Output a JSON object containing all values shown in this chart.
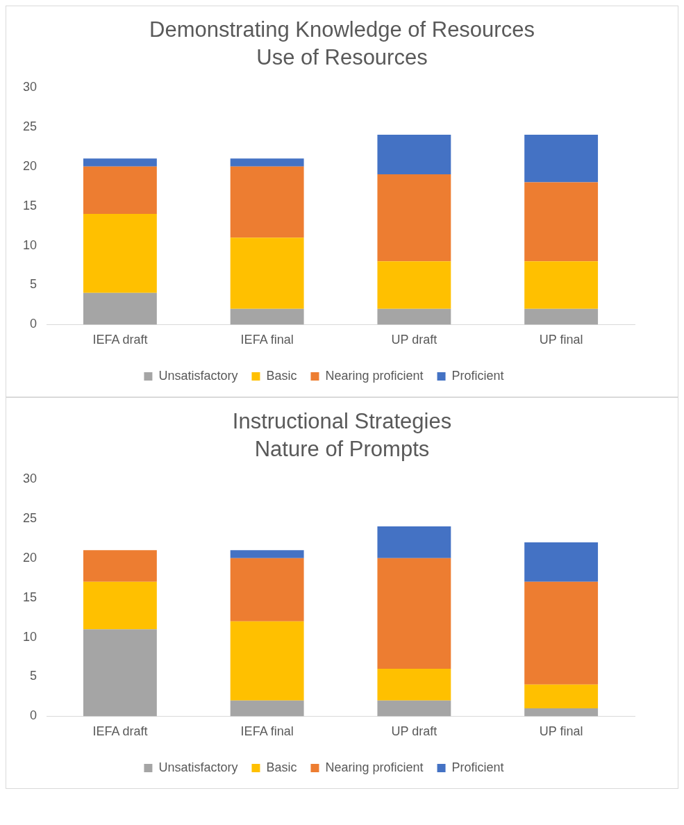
{
  "chart_data": [
    {
      "type": "bar",
      "title": "Demonstrating Knowledge of Resources",
      "subtitle": "Use of Resources",
      "categories": [
        "IEFA draft",
        "IEFA final",
        "UP draft",
        "UP final"
      ],
      "stacked": true,
      "ylim": [
        0,
        30
      ],
      "yticks": [
        0,
        5,
        10,
        15,
        20,
        25,
        30
      ],
      "grid": false,
      "legend": "bottom",
      "series": [
        {
          "name": "Unsatisfactory",
          "color": "#a5a5a5",
          "values": [
            4,
            2,
            2,
            2
          ]
        },
        {
          "name": "Basic",
          "color": "#ffc000",
          "values": [
            10,
            9,
            6,
            6
          ]
        },
        {
          "name": "Nearing proficient",
          "color": "#ed7d31",
          "values": [
            6,
            9,
            11,
            10
          ]
        },
        {
          "name": "Proficient",
          "color": "#4472c4",
          "values": [
            1,
            1,
            5,
            6
          ]
        }
      ]
    },
    {
      "type": "bar",
      "title": "Instructional Strategies",
      "subtitle": "Nature of Prompts",
      "categories": [
        "IEFA draft",
        "IEFA final",
        "UP draft",
        "UP final"
      ],
      "stacked": true,
      "ylim": [
        0,
        30
      ],
      "yticks": [
        0,
        5,
        10,
        15,
        20,
        25,
        30
      ],
      "grid": false,
      "legend": "bottom",
      "series": [
        {
          "name": "Unsatisfactory",
          "color": "#a5a5a5",
          "values": [
            11,
            2,
            2,
            1
          ]
        },
        {
          "name": "Basic",
          "color": "#ffc000",
          "values": [
            6,
            10,
            4,
            3
          ]
        },
        {
          "name": "Nearing proficient",
          "color": "#ed7d31",
          "values": [
            4,
            8,
            14,
            13
          ]
        },
        {
          "name": "Proficient",
          "color": "#4472c4",
          "values": [
            0,
            1,
            4,
            5
          ]
        }
      ]
    }
  ]
}
